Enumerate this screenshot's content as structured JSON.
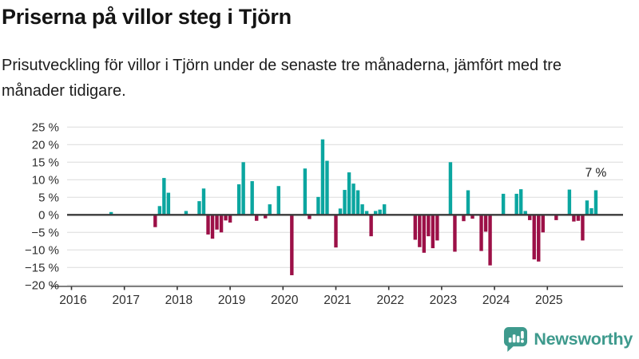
{
  "header": {
    "title": "Priserna på villor steg i Tjörn",
    "subtitle": "Prisutveckling för villor i Tjörn under de senaste tre månaderna, jämfört med tre månader tidigare."
  },
  "chart_data": {
    "type": "bar",
    "title": "Priserna på villor steg i Tjörn",
    "subtitle": "Prisutveckling för villor i Tjörn under de senaste tre månaderna, jämfört med tre månader tidigare.",
    "unit": "%",
    "ylim": [
      -20,
      25
    ],
    "grid": "horizontal",
    "colors": {
      "positive": "#0ba6a0",
      "negative": "#9c1047"
    },
    "y_ticks": [
      {
        "label": "25 %",
        "value": 25
      },
      {
        "label": "20 %",
        "value": 20
      },
      {
        "label": "15 %",
        "value": 15
      },
      {
        "label": "10 %",
        "value": 10
      },
      {
        "label": "5 %",
        "value": 5
      },
      {
        "label": "0 %",
        "value": 0
      },
      {
        "label": "−5 %",
        "value": -5
      },
      {
        "label": "−10 %",
        "value": -10
      },
      {
        "label": "−15 %",
        "value": -15
      },
      {
        "label": "−20 %",
        "value": -20
      }
    ],
    "x_tick_labels": [
      "2016",
      "2017",
      "2018",
      "2019",
      "2020",
      "2021",
      "2022",
      "2023",
      "2024",
      "2025"
    ],
    "annotation": {
      "text": "7 %",
      "month": "2025-12"
    },
    "bars": [
      {
        "month": "2016-10",
        "value": 0.8
      },
      {
        "month": "2017-08",
        "value": -3.5
      },
      {
        "month": "2017-09",
        "value": 2.5
      },
      {
        "month": "2017-10",
        "value": 10.5
      },
      {
        "month": "2017-11",
        "value": 6.3
      },
      {
        "month": "2018-03",
        "value": 1.1
      },
      {
        "month": "2018-06",
        "value": 3.9
      },
      {
        "month": "2018-07",
        "value": 7.5
      },
      {
        "month": "2018-08",
        "value": -5.6
      },
      {
        "month": "2018-09",
        "value": -6.8
      },
      {
        "month": "2018-10",
        "value": -4.2
      },
      {
        "month": "2018-11",
        "value": -5.0
      },
      {
        "month": "2018-12",
        "value": -1.6
      },
      {
        "month": "2019-01",
        "value": -2.2
      },
      {
        "month": "2019-03",
        "value": 8.7
      },
      {
        "month": "2019-04",
        "value": 15.0
      },
      {
        "month": "2019-06",
        "value": 9.6
      },
      {
        "month": "2019-07",
        "value": -1.7
      },
      {
        "month": "2019-09",
        "value": -1.0
      },
      {
        "month": "2019-10",
        "value": 3.0
      },
      {
        "month": "2019-12",
        "value": 8.2
      },
      {
        "month": "2020-03",
        "value": -17.2
      },
      {
        "month": "2020-06",
        "value": 13.2
      },
      {
        "month": "2020-07",
        "value": -1.2
      },
      {
        "month": "2020-09",
        "value": 5.1
      },
      {
        "month": "2020-10",
        "value": 21.5
      },
      {
        "month": "2020-11",
        "value": 15.4
      },
      {
        "month": "2021-01",
        "value": -9.3
      },
      {
        "month": "2021-02",
        "value": 1.8
      },
      {
        "month": "2021-03",
        "value": 7.1
      },
      {
        "month": "2021-04",
        "value": 12.1
      },
      {
        "month": "2021-05",
        "value": 8.9
      },
      {
        "month": "2021-06",
        "value": 7.0
      },
      {
        "month": "2021-07",
        "value": 3.0
      },
      {
        "month": "2021-08",
        "value": 1.1
      },
      {
        "month": "2021-09",
        "value": -6.1
      },
      {
        "month": "2021-10",
        "value": 1.1
      },
      {
        "month": "2021-11",
        "value": 1.5
      },
      {
        "month": "2021-12",
        "value": 3.0
      },
      {
        "month": "2022-07",
        "value": -7.1
      },
      {
        "month": "2022-08",
        "value": -9.2
      },
      {
        "month": "2022-09",
        "value": -10.8
      },
      {
        "month": "2022-10",
        "value": -6.1
      },
      {
        "month": "2022-11",
        "value": -9.5
      },
      {
        "month": "2022-12",
        "value": -7.3
      },
      {
        "month": "2023-03",
        "value": 15.0
      },
      {
        "month": "2023-04",
        "value": -10.5
      },
      {
        "month": "2023-06",
        "value": -1.8
      },
      {
        "month": "2023-07",
        "value": 7.0
      },
      {
        "month": "2023-08",
        "value": -1.1
      },
      {
        "month": "2023-10",
        "value": -10.3
      },
      {
        "month": "2023-11",
        "value": -4.8
      },
      {
        "month": "2023-12",
        "value": -14.4
      },
      {
        "month": "2024-03",
        "value": 6.0
      },
      {
        "month": "2024-06",
        "value": 6.0
      },
      {
        "month": "2024-07",
        "value": 7.3
      },
      {
        "month": "2024-08",
        "value": 1.1
      },
      {
        "month": "2024-09",
        "value": -1.5
      },
      {
        "month": "2024-10",
        "value": -12.7
      },
      {
        "month": "2024-11",
        "value": -13.3
      },
      {
        "month": "2024-12",
        "value": -5.0
      },
      {
        "month": "2025-03",
        "value": -1.5
      },
      {
        "month": "2025-06",
        "value": 7.2
      },
      {
        "month": "2025-07",
        "value": -1.9
      },
      {
        "month": "2025-08",
        "value": -1.7
      },
      {
        "month": "2025-09",
        "value": -7.3
      },
      {
        "month": "2025-10",
        "value": 4.1
      },
      {
        "month": "2025-11",
        "value": 1.9
      },
      {
        "month": "2025-12",
        "value": 7.0
      }
    ]
  },
  "footer": {
    "brand": "Newsworthy"
  }
}
